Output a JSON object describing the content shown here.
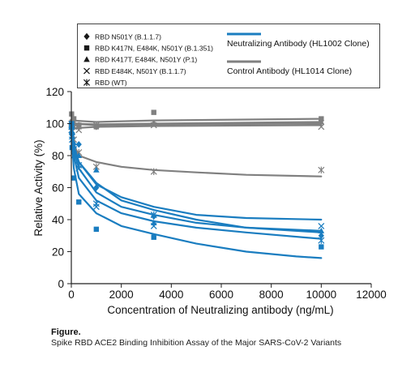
{
  "figure": {
    "caption_heading": "Figure.",
    "caption_text": "Spike RBD ACE2 Binding Inhibition Assay of the Major SARS-CoV-2 Variants"
  },
  "chart_data": {
    "type": "scatter",
    "xlabel": "Concentration of Neutralizing antibody (ng/mL)",
    "ylabel": "Relative Activity (%)",
    "xlim": [
      0,
      12000
    ],
    "ylim": [
      0,
      120
    ],
    "xticks": [
      0,
      2000,
      4000,
      6000,
      8000,
      10000,
      12000
    ],
    "yticks": [
      0,
      20,
      40,
      60,
      80,
      100,
      120
    ],
    "grid": false,
    "colors": {
      "neutralizing": "#1a7dc0",
      "control": "#808080"
    },
    "marker_legend": [
      {
        "marker": "diamond",
        "label": "RBD N501Y (B.1.1.7)"
      },
      {
        "marker": "square",
        "label": "RBD K417N, E484K, N501Y (B.1.351)"
      },
      {
        "marker": "triangle",
        "label": "RBD K417T, E484K, N501Y (P.1)"
      },
      {
        "marker": "x",
        "label": "RBD E484K, N501Y (B.1.1.7)"
      },
      {
        "marker": "asterisk",
        "label": "RBD (WT)"
      }
    ],
    "line_legend": [
      {
        "group": "neutralizing",
        "label": "Neutralizing Antibody (HL1002 Clone)"
      },
      {
        "group": "control",
        "label": "Control Antibody (HL1014 Clone)"
      }
    ],
    "series": [
      {
        "group": "neutralizing",
        "marker": "diamond",
        "x": [
          10,
          30,
          100,
          300,
          1000,
          3300,
          10000
        ],
        "y": [
          97,
          93,
          85,
          87,
          60,
          42,
          30
        ],
        "fit": [
          [
            10,
            99
          ],
          [
            30,
            92
          ],
          [
            100,
            85
          ],
          [
            300,
            76
          ],
          [
            1000,
            63
          ],
          [
            2000,
            52
          ],
          [
            3300,
            46
          ],
          [
            5000,
            40
          ],
          [
            7000,
            35
          ],
          [
            10000,
            32
          ]
        ]
      },
      {
        "group": "neutralizing",
        "marker": "square",
        "x": [
          10,
          30,
          100,
          300,
          1000,
          3300,
          10000
        ],
        "y": [
          100,
          85,
          66,
          51,
          34,
          29,
          23
        ],
        "fit": [
          [
            10,
            100
          ],
          [
            30,
            88
          ],
          [
            100,
            72
          ],
          [
            300,
            56
          ],
          [
            1000,
            44
          ],
          [
            2000,
            36
          ],
          [
            3300,
            31
          ],
          [
            5000,
            25
          ],
          [
            7000,
            20
          ],
          [
            9000,
            17
          ],
          [
            10000,
            16
          ]
        ]
      },
      {
        "group": "neutralizing",
        "marker": "triangle",
        "x": [
          10,
          30,
          100,
          300,
          1000,
          3300,
          10000
        ],
        "y": [
          99,
          95,
          88,
          80,
          71,
          38,
          33
        ],
        "fit": [
          [
            10,
            100
          ],
          [
            30,
            94
          ],
          [
            100,
            86
          ],
          [
            300,
            76
          ],
          [
            1000,
            62
          ],
          [
            2000,
            54
          ],
          [
            3300,
            48
          ],
          [
            5000,
            43
          ],
          [
            7000,
            41
          ],
          [
            10000,
            40
          ]
        ]
      },
      {
        "group": "neutralizing",
        "marker": "x",
        "x": [
          10,
          30,
          100,
          300,
          1000,
          3300,
          10000
        ],
        "y": [
          96,
          90,
          80,
          72,
          48,
          36,
          36
        ],
        "fit": [
          [
            10,
            98
          ],
          [
            30,
            90
          ],
          [
            100,
            80
          ],
          [
            300,
            66
          ],
          [
            1000,
            52
          ],
          [
            2000,
            44
          ],
          [
            3300,
            39
          ],
          [
            5000,
            35
          ],
          [
            7000,
            32
          ],
          [
            10000,
            28
          ]
        ]
      },
      {
        "group": "neutralizing",
        "marker": "asterisk",
        "x": [
          10,
          30,
          100,
          300,
          1000,
          3300,
          10000
        ],
        "y": [
          98,
          92,
          84,
          74,
          50,
          43,
          27
        ],
        "fit": [
          [
            10,
            99
          ],
          [
            30,
            93
          ],
          [
            100,
            84
          ],
          [
            300,
            72
          ],
          [
            1000,
            57
          ],
          [
            2000,
            48
          ],
          [
            3300,
            43
          ],
          [
            5000,
            38
          ],
          [
            7000,
            35
          ],
          [
            10000,
            33
          ]
        ]
      },
      {
        "group": "control",
        "marker": "diamond",
        "x": [
          10,
          30,
          100,
          300,
          1000,
          3300,
          10000
        ],
        "y": [
          101,
          100,
          99,
          99,
          98,
          100,
          102
        ],
        "fit": [
          [
            10,
            100
          ],
          [
            1000,
            99.5
          ],
          [
            3300,
            100
          ],
          [
            10000,
            101
          ]
        ]
      },
      {
        "group": "control",
        "marker": "square",
        "x": [
          10,
          30,
          100,
          300,
          1000,
          3300,
          10000
        ],
        "y": [
          106,
          101,
          103,
          99,
          98,
          107,
          103
        ],
        "fit": [
          [
            10,
            102
          ],
          [
            1000,
            101
          ],
          [
            3300,
            102
          ],
          [
            10000,
            103
          ]
        ]
      },
      {
        "group": "control",
        "marker": "triangle",
        "x": [
          10,
          30,
          100,
          300,
          1000,
          3300,
          10000
        ],
        "y": [
          100,
          99,
          101,
          98,
          99,
          100,
          101
        ],
        "fit": [
          [
            10,
            100
          ],
          [
            1000,
            99
          ],
          [
            3300,
            99.5
          ],
          [
            10000,
            100
          ]
        ]
      },
      {
        "group": "control",
        "marker": "x",
        "x": [
          10,
          30,
          100,
          300,
          1000,
          3300,
          10000
        ],
        "y": [
          96,
          99,
          98,
          96,
          99,
          99,
          98
        ],
        "fit": [
          [
            10,
            97
          ],
          [
            1000,
            98
          ],
          [
            3300,
            98.5
          ],
          [
            10000,
            99
          ]
        ]
      },
      {
        "group": "control",
        "marker": "asterisk",
        "x": [
          10,
          30,
          100,
          300,
          1000,
          3300,
          10000
        ],
        "y": [
          100,
          95,
          90,
          82,
          73,
          70,
          71
        ],
        "fit": [
          [
            10,
            99
          ],
          [
            30,
            93
          ],
          [
            100,
            87
          ],
          [
            300,
            80
          ],
          [
            1000,
            76
          ],
          [
            2000,
            73
          ],
          [
            3300,
            71
          ],
          [
            5000,
            69.5
          ],
          [
            7000,
            68
          ],
          [
            10000,
            67
          ]
        ]
      }
    ]
  }
}
